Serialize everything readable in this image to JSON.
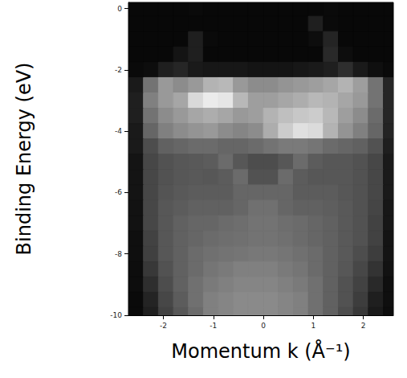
{
  "chart_data": {
    "type": "heatmap",
    "xlabel": "Momentum k (Å⁻¹)",
    "ylabel": "Binding Energy (eV)",
    "x": [
      -2.55,
      -2.25,
      -1.95,
      -1.65,
      -1.35,
      -1.05,
      -0.75,
      -0.45,
      -0.15,
      0.15,
      0.45,
      0.75,
      1.05,
      1.35,
      1.65,
      1.95,
      2.25,
      2.55
    ],
    "y": [
      0,
      -0.5,
      -1,
      -1.5,
      -2,
      -2.5,
      -3,
      -3.5,
      -4,
      -4.5,
      -5,
      -5.5,
      -6,
      -6.5,
      -7,
      -7.5,
      -8,
      -8.5,
      -9,
      -9.5,
      -10
    ],
    "z": [
      [
        3,
        3,
        3,
        3,
        4,
        3,
        3,
        3,
        3,
        3,
        3,
        3,
        3,
        4,
        3,
        3,
        3,
        3
      ],
      [
        3,
        3,
        3,
        3,
        3,
        3,
        3,
        3,
        3,
        3,
        3,
        3,
        12,
        4,
        3,
        3,
        3,
        3
      ],
      [
        3,
        3,
        3,
        3,
        12,
        4,
        3,
        3,
        3,
        3,
        3,
        3,
        5,
        14,
        3,
        3,
        3,
        3
      ],
      [
        3,
        3,
        3,
        8,
        12,
        3,
        3,
        3,
        3,
        3,
        3,
        3,
        3,
        16,
        5,
        3,
        3,
        3
      ],
      [
        4,
        5,
        12,
        15,
        10,
        9,
        9,
        9,
        8,
        8,
        8,
        9,
        10,
        12,
        18,
        10,
        6,
        4
      ],
      [
        10,
        45,
        60,
        55,
        60,
        70,
        72,
        60,
        55,
        55,
        58,
        60,
        62,
        65,
        70,
        62,
        45,
        15
      ],
      [
        12,
        50,
        60,
        65,
        85,
        92,
        90,
        72,
        62,
        62,
        65,
        68,
        72,
        70,
        65,
        60,
        45,
        15
      ],
      [
        12,
        45,
        55,
        60,
        65,
        68,
        65,
        60,
        62,
        70,
        75,
        78,
        80,
        72,
        62,
        55,
        42,
        15
      ],
      [
        10,
        40,
        50,
        55,
        58,
        60,
        55,
        52,
        55,
        68,
        80,
        88,
        86,
        70,
        58,
        50,
        40,
        14
      ],
      [
        10,
        30,
        38,
        40,
        42,
        42,
        40,
        40,
        42,
        45,
        48,
        48,
        46,
        42,
        40,
        38,
        32,
        12
      ],
      [
        8,
        28,
        32,
        34,
        35,
        36,
        42,
        34,
        30,
        30,
        34,
        42,
        36,
        34,
        34,
        32,
        28,
        10
      ],
      [
        8,
        28,
        32,
        34,
        35,
        34,
        36,
        42,
        32,
        32,
        42,
        36,
        34,
        34,
        34,
        32,
        28,
        10
      ],
      [
        8,
        28,
        33,
        35,
        36,
        36,
        36,
        40,
        40,
        40,
        40,
        36,
        36,
        36,
        34,
        32,
        28,
        10
      ],
      [
        7,
        28,
        34,
        36,
        38,
        38,
        38,
        40,
        44,
        44,
        40,
        38,
        38,
        37,
        35,
        32,
        27,
        9
      ],
      [
        7,
        28,
        34,
        38,
        40,
        40,
        42,
        43,
        45,
        45,
        43,
        42,
        40,
        38,
        35,
        32,
        26,
        9
      ],
      [
        6,
        26,
        34,
        38,
        40,
        42,
        43,
        44,
        45,
        45,
        44,
        42,
        40,
        38,
        35,
        32,
        26,
        8
      ],
      [
        6,
        25,
        34,
        38,
        42,
        44,
        45,
        46,
        47,
        47,
        46,
        44,
        42,
        38,
        35,
        30,
        24,
        8
      ],
      [
        5,
        22,
        32,
        38,
        42,
        46,
        48,
        50,
        50,
        50,
        48,
        46,
        42,
        38,
        34,
        28,
        20,
        7
      ],
      [
        5,
        18,
        30,
        38,
        44,
        48,
        50,
        52,
        52,
        52,
        50,
        48,
        44,
        38,
        32,
        26,
        16,
        6
      ],
      [
        4,
        14,
        28,
        36,
        44,
        50,
        52,
        54,
        54,
        54,
        52,
        50,
        44,
        38,
        32,
        24,
        12,
        6
      ],
      [
        4,
        12,
        26,
        34,
        42,
        50,
        52,
        54,
        54,
        54,
        52,
        50,
        44,
        38,
        30,
        22,
        10,
        5
      ]
    ],
    "zlim": [
      0,
      100
    ],
    "xlim": [
      -2.7,
      2.6
    ],
    "ylim": [
      -10,
      0.2
    ],
    "xticks": [
      -2,
      -1,
      0,
      1,
      2
    ],
    "yticks": [
      0,
      -2,
      -4,
      -6,
      -8,
      -10
    ],
    "grid": false
  }
}
